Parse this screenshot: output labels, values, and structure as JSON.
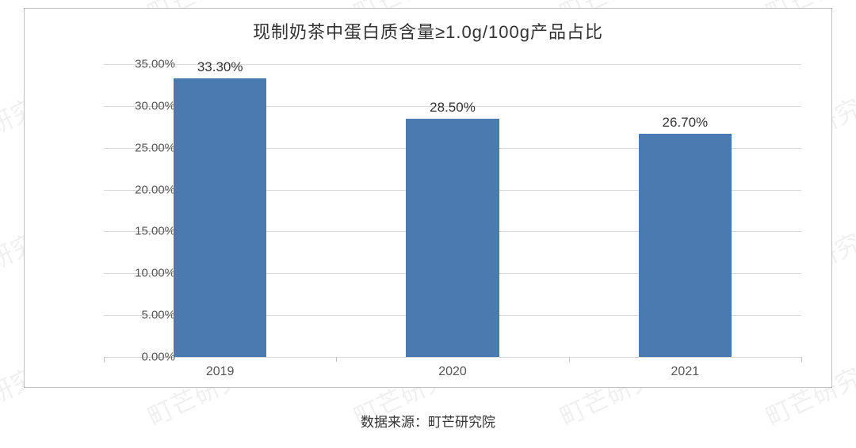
{
  "chart": {
    "type": "bar",
    "title": "现制奶茶中蛋白质含量≥1.0g/100g产品占比",
    "title_fontsize": 22,
    "title_color": "#333333",
    "background_color": "#ffffff",
    "border_color": "#bfbfbf",
    "grid_color": "#d9d9d9",
    "axis_label_color": "#555555",
    "axis_label_fontsize": 15,
    "x_label_fontsize": 16,
    "bar_color": "#4a7ab0",
    "bar_label_color": "#333333",
    "bar_label_fontsize": 17,
    "bar_width_ratio": 0.4,
    "ylim": [
      0,
      35
    ],
    "ytick_step": 5,
    "y_format_decimals": 2,
    "y_suffix": "%",
    "categories": [
      "2019",
      "2020",
      "2021"
    ],
    "values": [
      33.3,
      28.5,
      26.7
    ],
    "bar_labels": [
      "33.30%",
      "28.50%",
      "26.70%"
    ]
  },
  "source": {
    "prefix": "数据来源：",
    "name": "町芒研究院",
    "fontsize": 17,
    "color": "#333333"
  },
  "watermark": {
    "text": "町芒研究院",
    "color_alpha": 0.06,
    "fontsize": 32,
    "rotation_deg": -25
  }
}
